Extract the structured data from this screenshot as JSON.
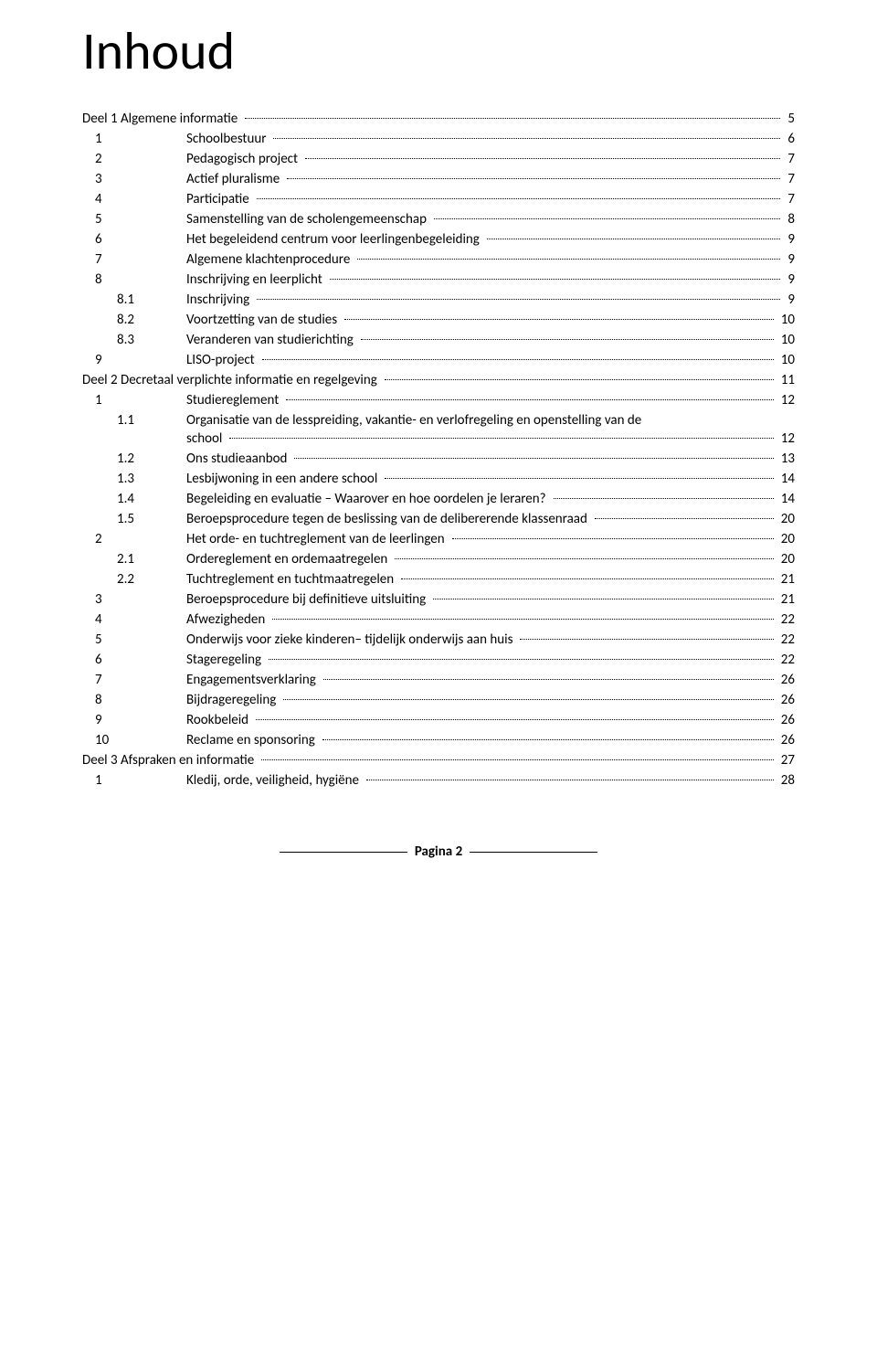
{
  "title": "Inhoud",
  "footer": "Pagina 2",
  "entries": [
    {
      "level": 0,
      "num": "",
      "label": "Deel 1 Algemene informatie",
      "page": "5"
    },
    {
      "level": 1,
      "num": "1",
      "label": "Schoolbestuur",
      "page": "6"
    },
    {
      "level": 1,
      "num": "2",
      "label": "Pedagogisch project",
      "page": "7"
    },
    {
      "level": 1,
      "num": "3",
      "label": "Actief pluralisme",
      "page": "7"
    },
    {
      "level": 1,
      "num": "4",
      "label": "Participatie",
      "page": "7"
    },
    {
      "level": 1,
      "num": "5",
      "label": "Samenstelling van de scholengemeenschap",
      "page": "8"
    },
    {
      "level": 1,
      "num": "6",
      "label": "Het begeleidend centrum voor leerlingenbegeleiding",
      "page": "9"
    },
    {
      "level": 1,
      "num": "7",
      "label": "Algemene klachtenprocedure",
      "page": "9"
    },
    {
      "level": 1,
      "num": "8",
      "label": "Inschrijving en leerplicht",
      "page": "9"
    },
    {
      "level": 2,
      "num": "8.1",
      "label": "Inschrijving",
      "page": "9"
    },
    {
      "level": 2,
      "num": "8.2",
      "label": "Voortzetting van de studies",
      "page": "10"
    },
    {
      "level": 2,
      "num": "8.3",
      "label": "Veranderen van studierichting",
      "page": "10"
    },
    {
      "level": 1,
      "num": "9",
      "label": "LISO-project",
      "page": "10"
    },
    {
      "level": 0,
      "num": "",
      "label": "Deel 2 Decretaal verplichte informatie en regelgeving",
      "page": "11"
    },
    {
      "level": 1,
      "num": "1",
      "label": "Studiereglement",
      "page": "12"
    },
    {
      "level": 2,
      "num": "1.1",
      "label_line1": "Organisatie van de lesspreiding, vakantie- en verlofregeling en openstelling van de",
      "label_line2": "school",
      "page": "12",
      "multiline": true
    },
    {
      "level": 2,
      "num": "1.2",
      "label": "Ons studieaanbod",
      "page": "13"
    },
    {
      "level": 2,
      "num": "1.3",
      "label": "Lesbijwoning in een andere school",
      "page": "14"
    },
    {
      "level": 2,
      "num": "1.4",
      "label": "Begeleiding en evaluatie – Waarover en hoe oordelen je leraren?",
      "page": "14"
    },
    {
      "level": 2,
      "num": "1.5",
      "label": "Beroepsprocedure tegen de beslissing van de delibererende klassenraad",
      "page": "20"
    },
    {
      "level": 1,
      "num": "2",
      "label": "Het orde- en tuchtreglement van de leerlingen",
      "page": "20"
    },
    {
      "level": 2,
      "num": "2.1",
      "label": "Ordereglement en ordemaatregelen",
      "page": "20"
    },
    {
      "level": 2,
      "num": "2.2",
      "label": "Tuchtreglement en tuchtmaatregelen",
      "page": "21"
    },
    {
      "level": 1,
      "num": "3",
      "label": "Beroepsprocedure bij definitieve uitsluiting",
      "page": "21"
    },
    {
      "level": 1,
      "num": "4",
      "label": "Afwezigheden",
      "page": "22"
    },
    {
      "level": 1,
      "num": "5",
      "label": "Onderwijs voor zieke kinderen– tijdelijk onderwijs aan huis",
      "page": "22"
    },
    {
      "level": 1,
      "num": "6",
      "label": "Stageregeling",
      "page": "22"
    },
    {
      "level": 1,
      "num": "7",
      "label": "Engagementsverklaring",
      "page": "26"
    },
    {
      "level": 1,
      "num": "8",
      "label": "Bijdrageregeling",
      "page": "26"
    },
    {
      "level": 1,
      "num": "9",
      "label": "Rookbeleid",
      "page": "26"
    },
    {
      "level": 1,
      "num": "10",
      "label": "Reclame en sponsoring",
      "page": "26"
    },
    {
      "level": 0,
      "num": "",
      "label": "Deel 3 Afspraken en informatie",
      "page": "27"
    },
    {
      "level": 1,
      "num": "1",
      "label": "Kledij, orde, veiligheid, hygiëne",
      "page": "28"
    }
  ]
}
